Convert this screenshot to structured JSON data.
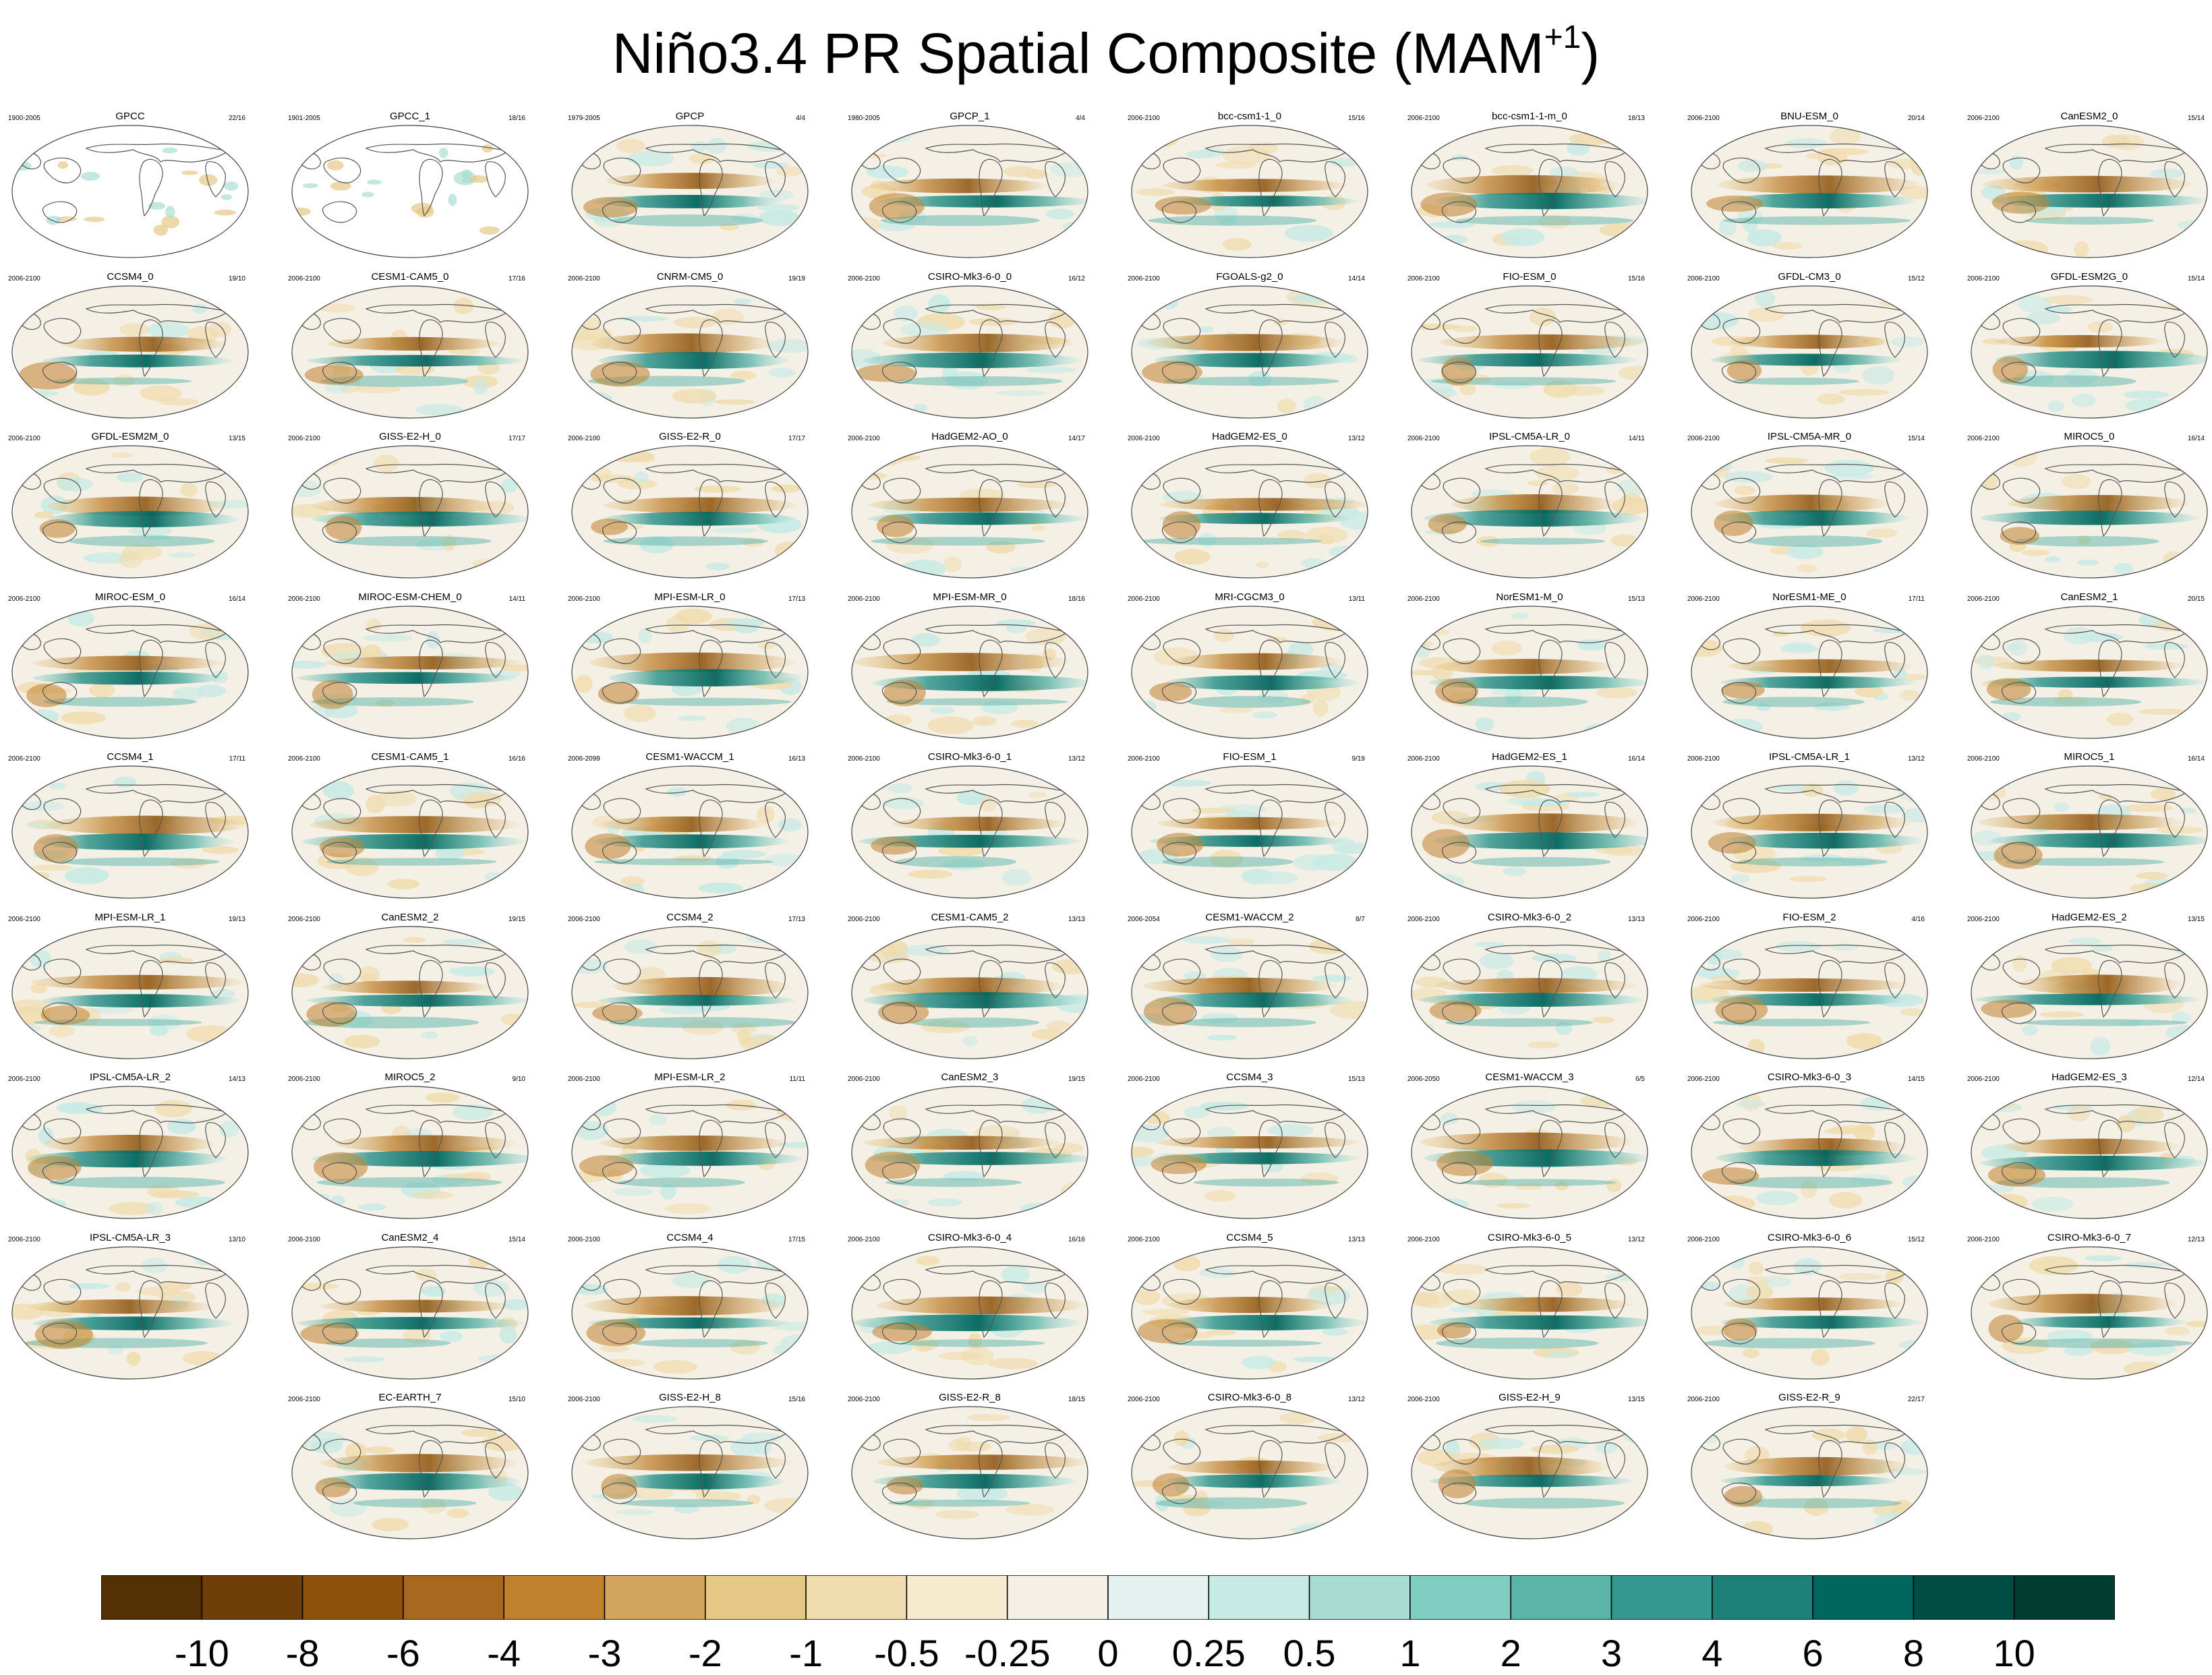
{
  "title": "Niño3.4 PR Spatial Composite (MAM",
  "title_sup": "+1",
  "title_close": ")",
  "chart_data": {
    "type": "heatmap",
    "layout_grid": {
      "rows": 9,
      "cols": 8
    },
    "colorbar": {
      "tick_labels": [
        "-10",
        "-8",
        "-6",
        "-4",
        "-3",
        "-2",
        "-1",
        "-0.5",
        "-0.25",
        "0",
        "0.25",
        "0.5",
        "1",
        "2",
        "3",
        "4",
        "6",
        "8",
        "10"
      ],
      "colors": [
        "#543005",
        "#6f3f0a",
        "#8c510a",
        "#a7681f",
        "#bf812d",
        "#d2a55f",
        "#e5c885",
        "#f0dcaf",
        "#f6ebcf",
        "#f5f0e6",
        "#e4f1ef",
        "#c7eae5",
        "#a9ddd4",
        "#80cdc1",
        "#5ab4a8",
        "#35978f",
        "#1d8079",
        "#01665e",
        "#014d43",
        "#003c30"
      ]
    },
    "panels": [
      {
        "name": "GPCC",
        "period": "1900-2005",
        "count": "22/16",
        "row": 0,
        "col": 0,
        "obs": true
      },
      {
        "name": "GPCC_1",
        "period": "1901-2005",
        "count": "18/16",
        "row": 0,
        "col": 1,
        "obs": true
      },
      {
        "name": "GPCP",
        "period": "1979-2005",
        "count": "4/4",
        "row": 0,
        "col": 2
      },
      {
        "name": "GPCP_1",
        "period": "1980-2005",
        "count": "4/4",
        "row": 0,
        "col": 3
      },
      {
        "name": "bcc-csm1-1_0",
        "period": "2006-2100",
        "count": "15/16",
        "row": 0,
        "col": 4
      },
      {
        "name": "bcc-csm1-1-m_0",
        "period": "2006-2100",
        "count": "18/13",
        "row": 0,
        "col": 5
      },
      {
        "name": "BNU-ESM_0",
        "period": "2006-2100",
        "count": "20/14",
        "row": 0,
        "col": 6
      },
      {
        "name": "CanESM2_0",
        "period": "2006-2100",
        "count": "15/14",
        "row": 0,
        "col": 7
      },
      {
        "name": "CCSM4_0",
        "period": "2006-2100",
        "count": "19/10",
        "row": 1,
        "col": 0
      },
      {
        "name": "CESM1-CAM5_0",
        "period": "2006-2100",
        "count": "17/16",
        "row": 1,
        "col": 1
      },
      {
        "name": "CNRM-CM5_0",
        "period": "2006-2100",
        "count": "19/19",
        "row": 1,
        "col": 2
      },
      {
        "name": "CSIRO-Mk3-6-0_0",
        "period": "2006-2100",
        "count": "16/12",
        "row": 1,
        "col": 3
      },
      {
        "name": "FGOALS-g2_0",
        "period": "2006-2100",
        "count": "14/14",
        "row": 1,
        "col": 4
      },
      {
        "name": "FIO-ESM_0",
        "period": "2006-2100",
        "count": "15/16",
        "row": 1,
        "col": 5
      },
      {
        "name": "GFDL-CM3_0",
        "period": "2006-2100",
        "count": "15/12",
        "row": 1,
        "col": 6
      },
      {
        "name": "GFDL-ESM2G_0",
        "period": "2006-2100",
        "count": "15/14",
        "row": 1,
        "col": 7
      },
      {
        "name": "GFDL-ESM2M_0",
        "period": "2006-2100",
        "count": "13/15",
        "row": 2,
        "col": 0
      },
      {
        "name": "GISS-E2-H_0",
        "period": "2006-2100",
        "count": "17/17",
        "row": 2,
        "col": 1
      },
      {
        "name": "GISS-E2-R_0",
        "period": "2006-2100",
        "count": "17/17",
        "row": 2,
        "col": 2
      },
      {
        "name": "HadGEM2-AO_0",
        "period": "2006-2100",
        "count": "14/17",
        "row": 2,
        "col": 3
      },
      {
        "name": "HadGEM2-ES_0",
        "period": "2006-2100",
        "count": "13/12",
        "row": 2,
        "col": 4
      },
      {
        "name": "IPSL-CM5A-LR_0",
        "period": "2006-2100",
        "count": "14/11",
        "row": 2,
        "col": 5
      },
      {
        "name": "IPSL-CM5A-MR_0",
        "period": "2006-2100",
        "count": "15/14",
        "row": 2,
        "col": 6
      },
      {
        "name": "MIROC5_0",
        "period": "2006-2100",
        "count": "16/14",
        "row": 2,
        "col": 7
      },
      {
        "name": "MIROC-ESM_0",
        "period": "2006-2100",
        "count": "16/14",
        "row": 3,
        "col": 0
      },
      {
        "name": "MIROC-ESM-CHEM_0",
        "period": "2006-2100",
        "count": "14/11",
        "row": 3,
        "col": 1
      },
      {
        "name": "MPI-ESM-LR_0",
        "period": "2006-2100",
        "count": "17/13",
        "row": 3,
        "col": 2
      },
      {
        "name": "MPI-ESM-MR_0",
        "period": "2006-2100",
        "count": "18/16",
        "row": 3,
        "col": 3
      },
      {
        "name": "MRI-CGCM3_0",
        "period": "2006-2100",
        "count": "13/11",
        "row": 3,
        "col": 4
      },
      {
        "name": "NorESM1-M_0",
        "period": "2006-2100",
        "count": "15/13",
        "row": 3,
        "col": 5
      },
      {
        "name": "NorESM1-ME_0",
        "period": "2006-2100",
        "count": "17/11",
        "row": 3,
        "col": 6
      },
      {
        "name": "CanESM2_1",
        "period": "2006-2100",
        "count": "20/15",
        "row": 3,
        "col": 7
      },
      {
        "name": "CCSM4_1",
        "period": "2006-2100",
        "count": "17/11",
        "row": 4,
        "col": 0
      },
      {
        "name": "CESM1-CAM5_1",
        "period": "2006-2100",
        "count": "16/16",
        "row": 4,
        "col": 1
      },
      {
        "name": "CESM1-WACCM_1",
        "period": "2006-2099",
        "count": "16/13",
        "row": 4,
        "col": 2
      },
      {
        "name": "CSIRO-Mk3-6-0_1",
        "period": "2006-2100",
        "count": "13/12",
        "row": 4,
        "col": 3
      },
      {
        "name": "FIO-ESM_1",
        "period": "2006-2100",
        "count": "9/19",
        "row": 4,
        "col": 4
      },
      {
        "name": "HadGEM2-ES_1",
        "period": "2006-2100",
        "count": "16/14",
        "row": 4,
        "col": 5
      },
      {
        "name": "IPSL-CM5A-LR_1",
        "period": "2006-2100",
        "count": "13/12",
        "row": 4,
        "col": 6
      },
      {
        "name": "MIROC5_1",
        "period": "2006-2100",
        "count": "16/14",
        "row": 4,
        "col": 7
      },
      {
        "name": "MPI-ESM-LR_1",
        "period": "2006-2100",
        "count": "19/13",
        "row": 5,
        "col": 0
      },
      {
        "name": "CanESM2_2",
        "period": "2006-2100",
        "count": "19/15",
        "row": 5,
        "col": 1
      },
      {
        "name": "CCSM4_2",
        "period": "2006-2100",
        "count": "17/13",
        "row": 5,
        "col": 2
      },
      {
        "name": "CESM1-CAM5_2",
        "period": "2006-2100",
        "count": "13/13",
        "row": 5,
        "col": 3
      },
      {
        "name": "CESM1-WACCM_2",
        "period": "2006-2054",
        "count": "8/7",
        "row": 5,
        "col": 4
      },
      {
        "name": "CSIRO-Mk3-6-0_2",
        "period": "2006-2100",
        "count": "13/13",
        "row": 5,
        "col": 5
      },
      {
        "name": "FIO-ESM_2",
        "period": "2006-2100",
        "count": "4/16",
        "row": 5,
        "col": 6
      },
      {
        "name": "HadGEM2-ES_2",
        "period": "2006-2100",
        "count": "13/15",
        "row": 5,
        "col": 7
      },
      {
        "name": "IPSL-CM5A-LR_2",
        "period": "2006-2100",
        "count": "14/13",
        "row": 6,
        "col": 0
      },
      {
        "name": "MIROC5_2",
        "period": "2006-2100",
        "count": "9/10",
        "row": 6,
        "col": 1
      },
      {
        "name": "MPI-ESM-LR_2",
        "period": "2006-2100",
        "count": "11/11",
        "row": 6,
        "col": 2
      },
      {
        "name": "CanESM2_3",
        "period": "2006-2100",
        "count": "19/15",
        "row": 6,
        "col": 3
      },
      {
        "name": "CCSM4_3",
        "period": "2006-2100",
        "count": "15/13",
        "row": 6,
        "col": 4
      },
      {
        "name": "CESM1-WACCM_3",
        "period": "2006-2050",
        "count": "6/5",
        "row": 6,
        "col": 5
      },
      {
        "name": "CSIRO-Mk3-6-0_3",
        "period": "2006-2100",
        "count": "14/15",
        "row": 6,
        "col": 6
      },
      {
        "name": "HadGEM2-ES_3",
        "period": "2006-2100",
        "count": "12/14",
        "row": 6,
        "col": 7
      },
      {
        "name": "IPSL-CM5A-LR_3",
        "period": "2006-2100",
        "count": "13/10",
        "row": 7,
        "col": 0
      },
      {
        "name": "CanESM2_4",
        "period": "2006-2100",
        "count": "15/14",
        "row": 7,
        "col": 1
      },
      {
        "name": "CCSM4_4",
        "period": "2006-2100",
        "count": "17/15",
        "row": 7,
        "col": 2
      },
      {
        "name": "CSIRO-Mk3-6-0_4",
        "period": "2006-2100",
        "count": "16/16",
        "row": 7,
        "col": 3
      },
      {
        "name": "CCSM4_5",
        "period": "2006-2100",
        "count": "13/13",
        "row": 7,
        "col": 4
      },
      {
        "name": "CSIRO-Mk3-6-0_5",
        "period": "2006-2100",
        "count": "13/12",
        "row": 7,
        "col": 5
      },
      {
        "name": "CSIRO-Mk3-6-0_6",
        "period": "2006-2100",
        "count": "15/12",
        "row": 7,
        "col": 6
      },
      {
        "name": "CSIRO-Mk3-6-0_7",
        "period": "2006-2100",
        "count": "12/13",
        "row": 7,
        "col": 7
      },
      {
        "name": "EC-EARTH_7",
        "period": "2006-2100",
        "count": "15/10",
        "row": 8,
        "col": 1
      },
      {
        "name": "GISS-E2-H_8",
        "period": "2006-2100",
        "count": "15/16",
        "row": 8,
        "col": 2
      },
      {
        "name": "GISS-E2-R_8",
        "period": "2006-2100",
        "count": "18/15",
        "row": 8,
        "col": 3
      },
      {
        "name": "CSIRO-Mk3-6-0_8",
        "period": "2006-2100",
        "count": "13/12",
        "row": 8,
        "col": 4
      },
      {
        "name": "GISS-E2-H_9",
        "period": "2006-2100",
        "count": "13/15",
        "row": 8,
        "col": 5
      },
      {
        "name": "GISS-E2-R_9",
        "period": "2006-2100",
        "count": "22/17",
        "row": 8,
        "col": 6
      }
    ]
  }
}
